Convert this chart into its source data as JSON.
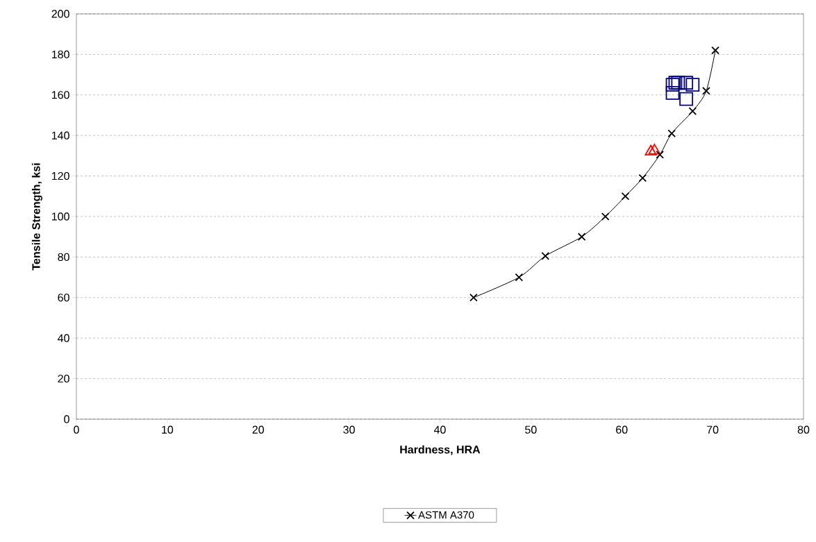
{
  "chart_data": {
    "type": "scatter",
    "xlabel": "Hardness, HRA",
    "ylabel": "Tensile Strength, ksi",
    "xlim": [
      0,
      80
    ],
    "ylim": [
      0,
      200
    ],
    "xticks": [
      0,
      10,
      20,
      30,
      40,
      50,
      60,
      70,
      80
    ],
    "yticks": [
      0,
      20,
      40,
      60,
      80,
      100,
      120,
      140,
      160,
      180,
      200
    ],
    "grid": "y",
    "legend": "bottom",
    "series": [
      {
        "marker": "square",
        "color": "#000080",
        "x": [
          65.6,
          65.9,
          66.2,
          67.1,
          67.8,
          65.6,
          67.1
        ],
        "values": [
          165,
          166,
          166,
          166,
          165,
          161,
          158
        ]
      },
      {
        "marker": "triangle",
        "color": "#ff0000",
        "x": [
          63.2,
          63.6
        ],
        "values": [
          132,
          132.5
        ]
      },
      {
        "type": "line",
        "name": "ASTM A370",
        "marker": "cross",
        "color": "#000000",
        "x": [
          43.7,
          48.7,
          51.6,
          55.6,
          58.2,
          60.4,
          62.3,
          64.2,
          65.5,
          67.8,
          69.3,
          70.3
        ],
        "values": [
          60,
          70,
          80.5,
          90,
          100,
          110,
          119,
          130.5,
          141,
          152,
          162,
          182
        ]
      }
    ]
  }
}
